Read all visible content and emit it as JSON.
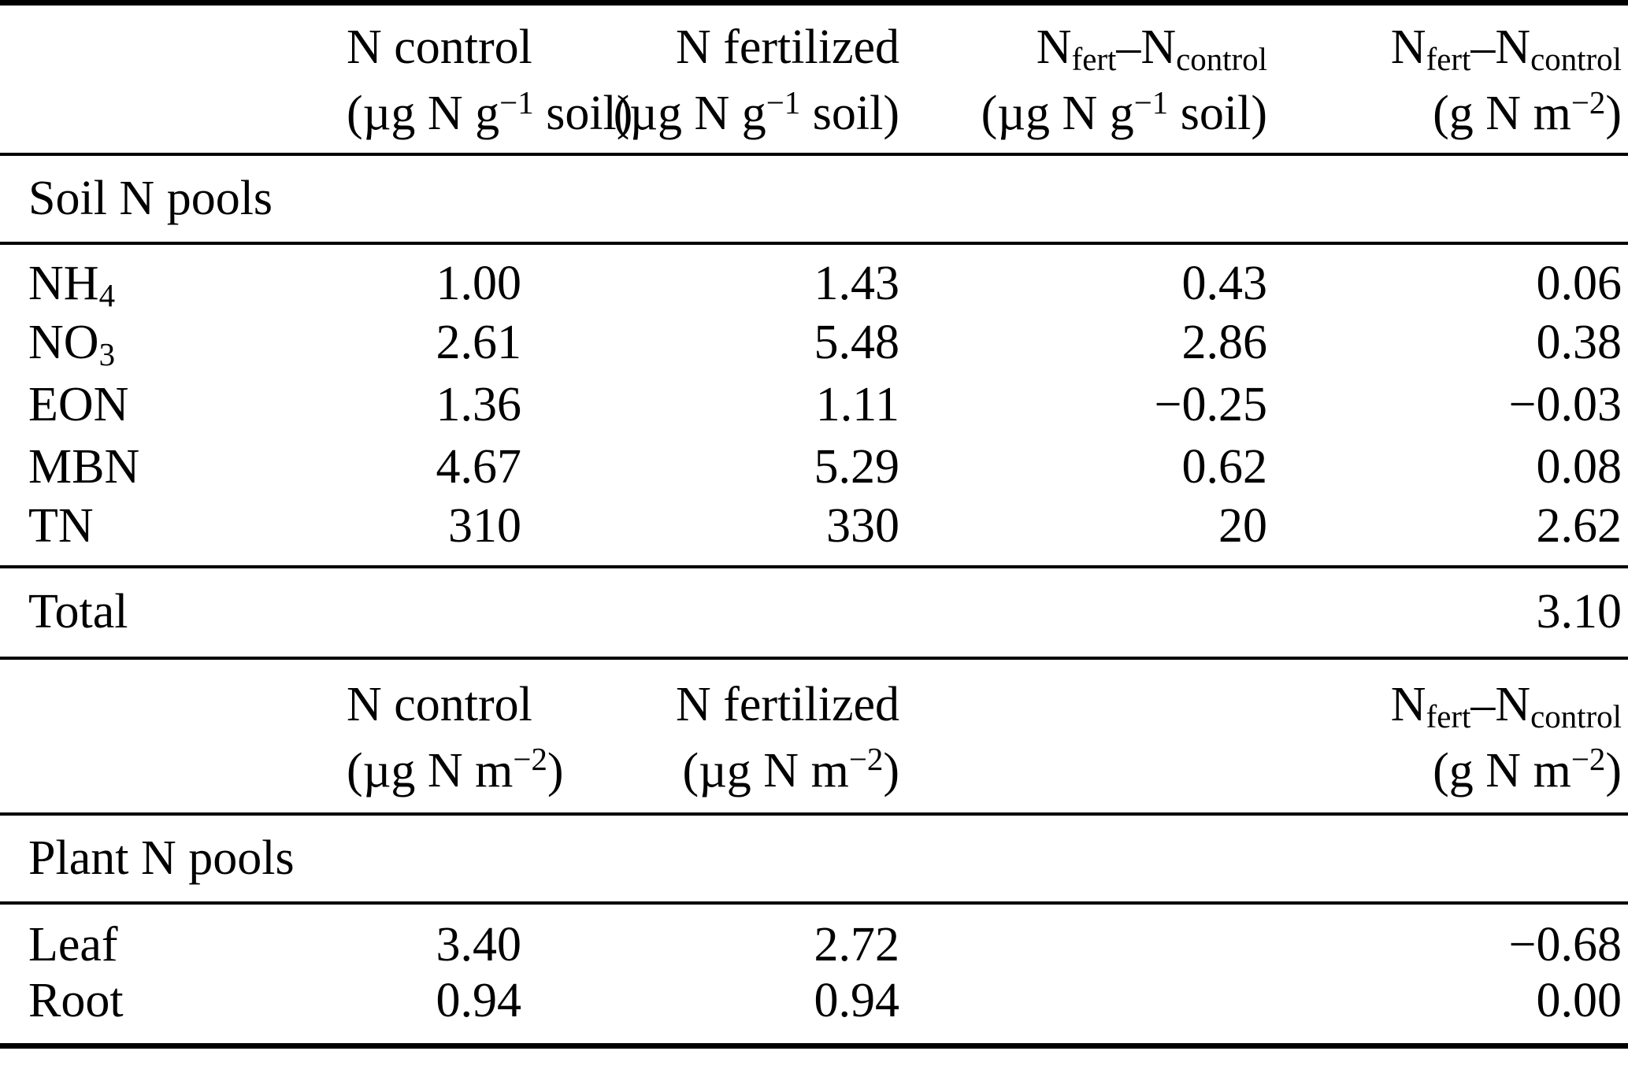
{
  "sections": {
    "soil": "Soil N pools",
    "plant": "Plant N pools"
  },
  "soil_header": {
    "columns": [
      {
        "title": "N control",
        "unit_pre": "(µg N g",
        "unit_sup": "−1",
        "unit_post": " soil)"
      },
      {
        "title": "N fertilized",
        "unit_pre": "(µg N g",
        "unit_sup": "−1",
        "unit_post": " soil)"
      },
      {
        "title_base1": "N",
        "title_sub1": "fert",
        "title_base2": "–N",
        "title_sub2": "control",
        "unit_pre": "(µg N g",
        "unit_sup": "−1",
        "unit_post": " soil)"
      },
      {
        "title_base1": "N",
        "title_sub1": "fert",
        "title_base2": "–N",
        "title_sub2": "control",
        "unit_pre": "(g N m",
        "unit_sup": "−2",
        "unit_post": ")"
      }
    ]
  },
  "soil_rows": [
    {
      "label_base": "NH",
      "label_sub": "4",
      "n_control": "1.00",
      "n_fertilized": "1.43",
      "diff_ug": "0.43",
      "diff_g": "0.06"
    },
    {
      "label_base": "NO",
      "label_sub": "3",
      "n_control": "2.61",
      "n_fertilized": "5.48",
      "diff_ug": "2.86",
      "diff_g": "0.38"
    },
    {
      "label_base": "EON",
      "label_sub": "",
      "n_control": "1.36",
      "n_fertilized": "1.11",
      "diff_ug": "−0.25",
      "diff_g": "−0.03"
    },
    {
      "label_base": "MBN",
      "label_sub": "",
      "n_control": "4.67",
      "n_fertilized": "5.29",
      "diff_ug": "0.62",
      "diff_g": "0.08"
    },
    {
      "label_base": "TN",
      "label_sub": "",
      "n_control": "310",
      "n_fertilized": "330",
      "diff_ug": "20",
      "diff_g": "2.62"
    }
  ],
  "total_row": {
    "label": "Total",
    "diff_g": "3.10"
  },
  "plant_header": {
    "columns": [
      {
        "title": "N control",
        "unit_pre": "(µg N m",
        "unit_sup": "−2",
        "unit_post": ")"
      },
      {
        "title": "N fertilized",
        "unit_pre": "(µg N m",
        "unit_sup": "−2",
        "unit_post": ")"
      },
      {
        "title_base1": "N",
        "title_sub1": "fert",
        "title_base2": "–N",
        "title_sub2": "control",
        "unit_pre": "(g N m",
        "unit_sup": "−2",
        "unit_post": ")"
      }
    ]
  },
  "plant_rows": [
    {
      "label": "Leaf",
      "n_control": "3.40",
      "n_fertilized": "2.72",
      "diff_g": "−0.68"
    },
    {
      "label": "Root",
      "n_control": "0.94",
      "n_fertilized": "0.94",
      "diff_g": "0.00"
    }
  ]
}
